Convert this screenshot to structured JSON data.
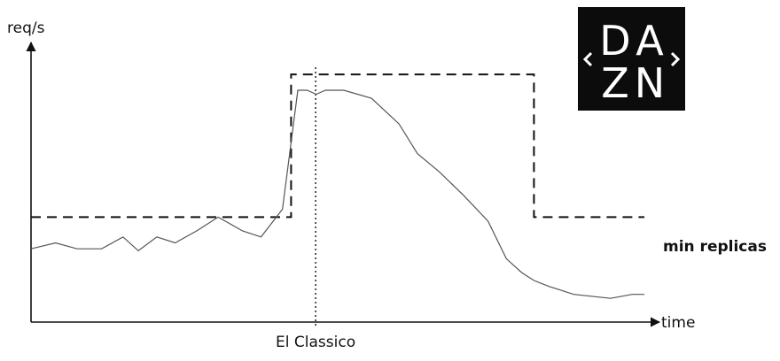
{
  "chart_data": {
    "type": "line",
    "ylabel": "req/s",
    "xlabel": "time",
    "event_label": "El Classico",
    "threshold_label": "min replicas",
    "logo": {
      "letters": [
        "D",
        "A",
        "Z",
        "N"
      ]
    },
    "traffic": {
      "x": [
        0,
        0.04,
        0.075,
        0.115,
        0.15,
        0.175,
        0.205,
        0.235,
        0.27,
        0.305,
        0.345,
        0.375,
        0.41,
        0.435,
        0.45,
        0.465,
        0.48,
        0.51,
        0.555,
        0.6,
        0.63,
        0.665,
        0.705,
        0.745,
        0.775,
        0.8,
        0.82,
        0.845,
        0.885,
        0.945,
        0.98,
        1.0
      ],
      "y": [
        0.2,
        0.23,
        0.2,
        0.2,
        0.26,
        0.19,
        0.26,
        0.23,
        0.29,
        0.36,
        0.29,
        0.26,
        0.4,
        1.0,
        1.0,
        0.98,
        1.0,
        1.0,
        0.96,
        0.83,
        0.68,
        0.59,
        0.47,
        0.34,
        0.15,
        0.08,
        0.04,
        0.01,
        -0.03,
        -0.05,
        -0.03,
        -0.03
      ]
    },
    "replicas": {
      "x": [
        0,
        0.424,
        0.424,
        0.82,
        0.82,
        1.0
      ],
      "y": [
        0.36,
        0.36,
        1.08,
        1.08,
        0.36,
        0.36
      ]
    },
    "event_x": 0.464,
    "grid": false,
    "legend": "none"
  }
}
